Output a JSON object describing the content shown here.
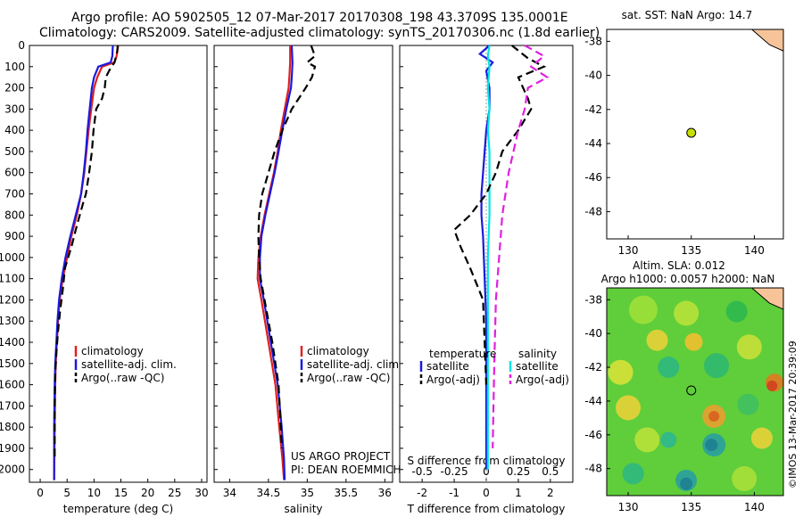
{
  "header": {
    "line1": "Argo profile: AO 5902505_12 07-Mar-2017 20170308_198 43.3709S 135.0001E",
    "line2": "Climatology: CARS2009. Satellite-adjusted climatology: synTS_20170306.nc (1.8d earlier)"
  },
  "side_label": "©IMOS 13-Mar-2017 20:39:09",
  "colors": {
    "clim": "#e02020",
    "sat": "#1a1adc",
    "argo": "#000000",
    "sat_s": "#00e5e5",
    "argo_s": "#e020e0",
    "land": "#f7c49a",
    "float_marker": "#c8e000"
  },
  "chart_data": [
    {
      "type": "line",
      "panel": "temperature",
      "xlabel": "temperature (deg C)",
      "xlim": [
        -2,
        31
      ],
      "xticks": [
        0,
        5,
        10,
        15,
        20,
        25,
        30
      ],
      "ylim": [
        0,
        2060
      ],
      "yticks": [
        0,
        100,
        200,
        300,
        400,
        500,
        600,
        700,
        800,
        900,
        1000,
        1100,
        1200,
        1300,
        1400,
        1500,
        1600,
        1700,
        1800,
        1900,
        2000
      ],
      "legend": [
        "climatology",
        "satellite-adj. clim.",
        "Argo(..raw -QC)"
      ],
      "series": [
        {
          "name": "climatology",
          "style": "solid",
          "color": "#e02020",
          "x": [
            14.5,
            14.2,
            13.8,
            11.5,
            10.6,
            10.0,
            9.5,
            9.0,
            8.6,
            8.2,
            7.6,
            6.8,
            5.8,
            5.0,
            4.2,
            3.6,
            3.3,
            3.1,
            2.9,
            2.8,
            2.7,
            2.6
          ],
          "y": [
            0,
            50,
            80,
            100,
            150,
            200,
            300,
            400,
            500,
            600,
            700,
            800,
            900,
            1000,
            1100,
            1200,
            1300,
            1400,
            1500,
            1600,
            1800,
            2050
          ]
        },
        {
          "name": "satellite-adj. clim.",
          "style": "solid",
          "color": "#1a1adc",
          "x": [
            13.5,
            13.4,
            13.1,
            10.8,
            10.0,
            9.6,
            9.2,
            8.8,
            8.5,
            8.1,
            7.6,
            6.6,
            5.6,
            4.7,
            4.0,
            3.5,
            3.2,
            3.0,
            2.8,
            2.7,
            2.6,
            2.6
          ],
          "y": [
            0,
            50,
            80,
            100,
            150,
            200,
            300,
            400,
            500,
            600,
            700,
            800,
            900,
            1000,
            1100,
            1200,
            1300,
            1400,
            1500,
            1600,
            1800,
            2050
          ]
        },
        {
          "name": "Argo(..raw -QC)",
          "style": "dash",
          "color": "#000000",
          "x": [
            14.4,
            14.3,
            13.8,
            12.8,
            12.2,
            12.0,
            11.5,
            10.4,
            9.9,
            9.6,
            9.1,
            8.5,
            7.9,
            6.8,
            5.8,
            4.6,
            4.2,
            3.7,
            3.3,
            3.0,
            2.8,
            2.7,
            2.7
          ],
          "y": [
            0,
            30,
            80,
            120,
            150,
            200,
            250,
            300,
            400,
            500,
            600,
            700,
            750,
            850,
            950,
            1050,
            1150,
            1250,
            1350,
            1450,
            1550,
            1700,
            1950
          ]
        }
      ]
    },
    {
      "type": "line",
      "panel": "salinity",
      "xlabel": "salinity",
      "xlim": [
        33.8,
        36.1
      ],
      "xticks": [
        34,
        34.5,
        35,
        35.5,
        36
      ],
      "ylim": [
        0,
        2060
      ],
      "legend": [
        "climatology",
        "satellite-adj. clim.",
        "Argo(..raw -QC)"
      ],
      "annotations": [
        "US ARGO PROJECT",
        "PI: DEAN ROEMMICH"
      ],
      "series": [
        {
          "name": "climatology",
          "color": "#e02020",
          "x": [
            34.78,
            34.78,
            34.77,
            34.76,
            34.71,
            34.66,
            34.62,
            34.57,
            34.51,
            34.45,
            34.4,
            34.37,
            34.36,
            34.41,
            34.5,
            34.59,
            34.64,
            34.68,
            34.7
          ],
          "y": [
            0,
            80,
            150,
            200,
            300,
            400,
            500,
            600,
            700,
            800,
            900,
            1000,
            1100,
            1200,
            1400,
            1600,
            1800,
            1950,
            2050
          ]
        },
        {
          "name": "satellite-adj. clim.",
          "color": "#1a1adc",
          "x": [
            34.8,
            34.81,
            34.8,
            34.79,
            34.73,
            34.68,
            34.63,
            34.58,
            34.52,
            34.46,
            34.41,
            34.39,
            34.39,
            34.44,
            34.53,
            34.62,
            34.67,
            34.7,
            34.71
          ],
          "y": [
            0,
            80,
            150,
            200,
            300,
            400,
            500,
            600,
            700,
            800,
            900,
            1000,
            1100,
            1200,
            1400,
            1600,
            1800,
            1950,
            2050
          ]
        },
        {
          "name": "Argo(..raw -QC)",
          "color": "#000000",
          "x": [
            35.05,
            35.1,
            35.0,
            35.1,
            35.06,
            34.98,
            34.8,
            34.68,
            34.58,
            34.5,
            34.42,
            34.38,
            34.37,
            34.38,
            34.4,
            34.45,
            34.55,
            34.63,
            34.66,
            34.67
          ],
          "y": [
            0,
            50,
            80,
            100,
            150,
            200,
            300,
            400,
            500,
            600,
            700,
            800,
            900,
            1000,
            1100,
            1200,
            1400,
            1600,
            1800,
            1900
          ]
        }
      ]
    },
    {
      "type": "line",
      "panel": "difference",
      "xlabel": "T difference from climatology",
      "xlabel_top": "S difference from climatology",
      "xlim": [
        -2.7,
        2.7
      ],
      "xticks": [
        -2,
        -1,
        0,
        1,
        2
      ],
      "xticks_top_labels": [
        "-0.5",
        "-0.25",
        "0",
        "0.25",
        "0.5"
      ],
      "ylim": [
        0,
        2060
      ],
      "legend_headers": [
        "temperature",
        "salinity"
      ],
      "legend": [
        "satellite",
        "Argo(-adj)",
        "satellite",
        "Argo(-adj)"
      ],
      "series": [
        {
          "name": "satellite",
          "quantity": "temperature",
          "color": "#1a1adc",
          "x": [
            0.1,
            -0.2,
            0.2,
            0.0,
            0.1,
            0.1,
            0.0,
            -0.05,
            -0.1,
            -0.15,
            -0.15,
            -0.1,
            -0.05,
            0.0,
            0.0,
            0.0
          ],
          "y": [
            0,
            40,
            80,
            120,
            200,
            300,
            400,
            500,
            600,
            700,
            800,
            900,
            1100,
            1300,
            1600,
            2000
          ]
        },
        {
          "name": "satellite",
          "quantity": "salinity",
          "color": "#00e5e5",
          "x": [
            0.1,
            0.05,
            0.1,
            0.05,
            0.1,
            0.05,
            0.1,
            0.1,
            0.1,
            0.05,
            0.05,
            0.05,
            0.05,
            0.05
          ],
          "y": [
            0,
            50,
            100,
            200,
            300,
            400,
            500,
            600,
            800,
            1000,
            1200,
            1400,
            1700,
            2000
          ]
        },
        {
          "name": "Argo(-adj)",
          "quantity": "temperature",
          "color": "#000000",
          "x": [
            0.8,
            1.3,
            1.8,
            1.0,
            1.3,
            1.4,
            1.0,
            0.5,
            0.3,
            0.0,
            -0.5,
            -1.0,
            -0.8,
            -0.5,
            -0.1,
            0.0
          ],
          "y": [
            0,
            60,
            100,
            150,
            250,
            300,
            400,
            500,
            600,
            700,
            800,
            870,
            950,
            1050,
            1200,
            1600
          ]
        },
        {
          "name": "Argo(-adj)",
          "quantity": "salinity",
          "color": "#e020e0",
          "x": [
            1.2,
            1.8,
            1.4,
            1.9,
            1.3,
            1.2,
            1.0,
            0.7,
            0.5,
            0.4,
            0.3,
            0.25,
            0.2
          ],
          "y": [
            0,
            50,
            100,
            150,
            200,
            300,
            400,
            600,
            800,
            1000,
            1200,
            1500,
            1900
          ]
        }
      ]
    },
    {
      "type": "scatter",
      "panel": "sst-map",
      "title": "sat. SST: NaN Argo: 14.7",
      "xlim": [
        128.3,
        142.3
      ],
      "ylim": [
        -49.6,
        -37.3
      ],
      "xticks": [
        130,
        135,
        140
      ],
      "yticks": [
        -38,
        -40,
        -42,
        -44,
        -46,
        -48
      ],
      "point": {
        "x": 135.0,
        "y": -43.37
      }
    },
    {
      "type": "heatmap",
      "panel": "sla-map",
      "title_lines": [
        "Altim. SLA: 0.012",
        "Argo h1000: 0.0057 h2000: NaN"
      ],
      "xlim": [
        128.3,
        142.3
      ],
      "ylim": [
        -49.6,
        -37.3
      ],
      "xticks": [
        130,
        135,
        140
      ],
      "yticks": [
        -38,
        -40,
        -42,
        -44,
        -46,
        -48
      ],
      "point": {
        "x": 135.0,
        "y": -43.37
      }
    }
  ]
}
